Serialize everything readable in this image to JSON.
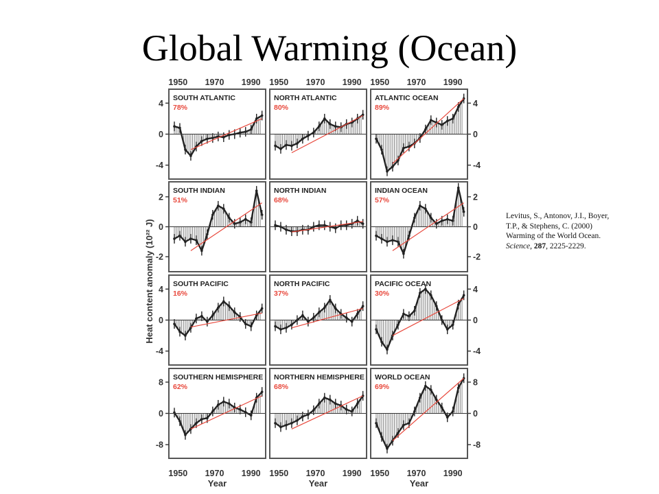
{
  "slide": {
    "title": "Global Warming (Ocean)"
  },
  "citation": {
    "line1": "Levitus, S., Antonov, J.I., Boyer,",
    "line2": "T.P., & Stephens, C. (2000)",
    "line3": "Warming of the World Ocean.",
    "line4_journal": "Science",
    "line4_sep1": ", ",
    "line4_volume": "287",
    "line4_pages": ", 2225-2229."
  },
  "figure": {
    "ylabel": "Heat content anomaly (10²² J)",
    "xlabel": "Year",
    "x_ticks": [
      "1950",
      "1970",
      "1990"
    ],
    "colors": {
      "frame": "#555555",
      "bars": "#777777",
      "series": "#222222",
      "trend": "#e8483c",
      "percent": "#e8483c"
    }
  },
  "chart_data": [
    {
      "type": "bar",
      "title": "SOUTH ATLANTIC",
      "percent": "78%",
      "xlim": [
        1945,
        1998
      ],
      "ylim": [
        -5.8,
        5.8
      ],
      "y_ticks": [
        -4,
        0,
        4
      ],
      "y_tick_labels": [
        "-4",
        "0",
        "4"
      ],
      "y_axis_side": "left",
      "trend": [
        -2.0,
        2.0
      ],
      "x": [
        1948,
        1951,
        1954,
        1957,
        1960,
        1963,
        1966,
        1969,
        1972,
        1975,
        1978,
        1981,
        1984,
        1987,
        1990,
        1993,
        1996
      ],
      "values": [
        1.0,
        0.8,
        -2.0,
        -2.8,
        -1.6,
        -0.9,
        -0.6,
        -0.5,
        -0.3,
        -0.4,
        -0.1,
        0.0,
        0.2,
        0.3,
        0.6,
        2.0,
        2.4
      ]
    },
    {
      "type": "bar",
      "title": "NORTH ATLANTIC",
      "percent": "80%",
      "xlim": [
        1945,
        1998
      ],
      "ylim": [
        -5.8,
        5.8
      ],
      "y_ticks": [
        -4,
        0,
        4
      ],
      "y_tick_labels": [
        "-4",
        "0",
        "4"
      ],
      "y_axis_side": "none",
      "trend": [
        -2.4,
        2.4
      ],
      "x": [
        1948,
        1951,
        1954,
        1957,
        1960,
        1963,
        1966,
        1969,
        1972,
        1975,
        1978,
        1981,
        1984,
        1987,
        1990,
        1993,
        1996
      ],
      "values": [
        -1.5,
        -1.9,
        -1.4,
        -1.5,
        -1.2,
        -0.6,
        -0.2,
        0.2,
        1.0,
        2.0,
        1.3,
        1.0,
        0.9,
        1.3,
        1.5,
        2.0,
        2.5
      ]
    },
    {
      "type": "bar",
      "title": "ATLANTIC OCEAN",
      "percent": "89%",
      "xlim": [
        1945,
        1998
      ],
      "ylim": [
        -5.8,
        5.8
      ],
      "y_ticks": [
        -4,
        0,
        4
      ],
      "y_tick_labels": [
        "-4",
        "0",
        "4"
      ],
      "y_axis_side": "right",
      "trend": [
        -3.8,
        4.6
      ],
      "x": [
        1948,
        1951,
        1954,
        1957,
        1960,
        1963,
        1966,
        1969,
        1972,
        1975,
        1978,
        1981,
        1984,
        1987,
        1990,
        1993,
        1996
      ],
      "values": [
        -0.6,
        -2.0,
        -4.8,
        -4.2,
        -3.4,
        -1.8,
        -1.6,
        -1.2,
        -0.5,
        0.6,
        1.8,
        1.5,
        1.2,
        1.7,
        2.0,
        3.5,
        4.6
      ]
    },
    {
      "type": "bar",
      "title": "SOUTH INDIAN",
      "percent": "51%",
      "xlim": [
        1945,
        1998
      ],
      "ylim": [
        -3.0,
        3.0
      ],
      "y_ticks": [
        -2,
        0,
        2
      ],
      "y_tick_labels": [
        "-2",
        "0",
        "2"
      ],
      "y_axis_side": "left",
      "trend": [
        -1.6,
        1.6
      ],
      "x": [
        1948,
        1951,
        1954,
        1957,
        1960,
        1963,
        1966,
        1969,
        1972,
        1975,
        1978,
        1981,
        1984,
        1987,
        1990,
        1993,
        1996
      ],
      "values": [
        -0.8,
        -0.6,
        -1.0,
        -0.8,
        -0.9,
        -1.6,
        -0.5,
        0.8,
        1.4,
        1.2,
        0.6,
        0.2,
        0.3,
        0.5,
        0.3,
        2.4,
        0.8
      ]
    },
    {
      "type": "bar",
      "title": "NORTH INDIAN",
      "percent": "68%",
      "xlim": [
        1945,
        1998
      ],
      "ylim": [
        -3.0,
        3.0
      ],
      "y_ticks": [
        -2,
        0,
        2
      ],
      "y_tick_labels": [
        "-2",
        "0",
        "2"
      ],
      "y_axis_side": "none",
      "trend": [
        -0.35,
        0.35
      ],
      "x": [
        1948,
        1951,
        1954,
        1957,
        1960,
        1963,
        1966,
        1969,
        1972,
        1975,
        1978,
        1981,
        1984,
        1987,
        1990,
        1993,
        1996
      ],
      "values": [
        0.1,
        0.0,
        -0.2,
        -0.3,
        -0.3,
        -0.2,
        -0.2,
        0.0,
        0.1,
        0.1,
        0.0,
        -0.1,
        0.1,
        0.1,
        0.2,
        0.4,
        0.2
      ]
    },
    {
      "type": "bar",
      "title": "INDIAN OCEAN",
      "percent": "57%",
      "xlim": [
        1945,
        1998
      ],
      "ylim": [
        -3.0,
        3.0
      ],
      "y_ticks": [
        -2,
        0,
        2
      ],
      "y_tick_labels": [
        "-2",
        "0",
        "2"
      ],
      "y_axis_side": "right",
      "trend": [
        -1.6,
        1.6
      ],
      "x": [
        1948,
        1951,
        1954,
        1957,
        1960,
        1963,
        1966,
        1969,
        1972,
        1975,
        1978,
        1981,
        1984,
        1987,
        1990,
        1993,
        1996
      ],
      "values": [
        -0.6,
        -0.8,
        -1.0,
        -0.9,
        -1.0,
        -1.8,
        -0.6,
        0.6,
        1.4,
        1.2,
        0.6,
        0.2,
        0.4,
        0.5,
        0.4,
        2.6,
        1.0
      ]
    },
    {
      "type": "bar",
      "title": "SOUTH PACIFIC",
      "percent": "16%",
      "xlim": [
        1945,
        1998
      ],
      "ylim": [
        -5.8,
        5.8
      ],
      "y_ticks": [
        -4,
        0,
        4
      ],
      "y_tick_labels": [
        "-4",
        "0",
        "4"
      ],
      "y_axis_side": "left",
      "trend": [
        -0.9,
        0.9
      ],
      "x": [
        1948,
        1951,
        1954,
        1957,
        1960,
        1963,
        1966,
        1969,
        1972,
        1975,
        1978,
        1981,
        1984,
        1987,
        1990,
        1993,
        1996
      ],
      "values": [
        -0.5,
        -1.5,
        -2.0,
        -1.0,
        0.2,
        0.5,
        -0.2,
        0.6,
        1.6,
        2.4,
        1.8,
        1.0,
        0.4,
        -0.5,
        -0.8,
        0.6,
        1.5
      ]
    },
    {
      "type": "bar",
      "title": "NORTH PACIFIC",
      "percent": "37%",
      "xlim": [
        1945,
        1998
      ],
      "ylim": [
        -5.8,
        5.8
      ],
      "y_ticks": [
        -4,
        0,
        4
      ],
      "y_tick_labels": [
        "-4",
        "0",
        "4"
      ],
      "y_axis_side": "none",
      "trend": [
        -1.0,
        1.5
      ],
      "x": [
        1948,
        1951,
        1954,
        1957,
        1960,
        1963,
        1966,
        1969,
        1972,
        1975,
        1978,
        1981,
        1984,
        1987,
        1990,
        1993,
        1996
      ],
      "values": [
        -0.8,
        -1.2,
        -1.0,
        -0.6,
        0.0,
        0.6,
        -0.2,
        0.3,
        1.0,
        1.6,
        2.6,
        1.5,
        0.8,
        0.3,
        -0.2,
        0.8,
        1.8
      ]
    },
    {
      "type": "bar",
      "title": "PACIFIC OCEAN",
      "percent": "30%",
      "xlim": [
        1945,
        1998
      ],
      "ylim": [
        -5.8,
        5.8
      ],
      "y_ticks": [
        -4,
        0,
        4
      ],
      "y_tick_labels": [
        "-4",
        "0",
        "4"
      ],
      "y_axis_side": "right",
      "trend": [
        -2.0,
        2.8
      ],
      "x": [
        1948,
        1951,
        1954,
        1957,
        1960,
        1963,
        1966,
        1969,
        1972,
        1975,
        1978,
        1981,
        1984,
        1987,
        1990,
        1993,
        1996
      ],
      "values": [
        -1.2,
        -2.8,
        -3.8,
        -2.0,
        -0.6,
        0.8,
        0.5,
        1.2,
        3.5,
        4.0,
        3.2,
        1.8,
        0.0,
        -1.2,
        -0.6,
        2.0,
        3.2
      ]
    },
    {
      "type": "bar",
      "title": "SOUTHERN HEMISPHERE",
      "percent": "62%",
      "xlim": [
        1945,
        1998
      ],
      "ylim": [
        -11.5,
        11.5
      ],
      "y_ticks": [
        -8,
        0,
        8
      ],
      "y_tick_labels": [
        "-8",
        "0",
        "8"
      ],
      "y_axis_side": "left",
      "trend": [
        -4.0,
        4.5
      ],
      "x": [
        1948,
        1951,
        1954,
        1957,
        1960,
        1963,
        1966,
        1969,
        1972,
        1975,
        1978,
        1981,
        1984,
        1987,
        1990,
        1993,
        1996
      ],
      "values": [
        0.2,
        -2.0,
        -5.5,
        -4.0,
        -2.5,
        -1.5,
        -1.2,
        0.5,
        2.2,
        3.0,
        2.5,
        1.5,
        1.0,
        0.3,
        -0.5,
        4.0,
        5.5
      ]
    },
    {
      "type": "bar",
      "title": "NORTHERN HEMISPHERE",
      "percent": "68%",
      "xlim": [
        1945,
        1998
      ],
      "ylim": [
        -11.5,
        11.5
      ],
      "y_ticks": [
        -8,
        0,
        8
      ],
      "y_tick_labels": [
        "-8",
        "0",
        "8"
      ],
      "y_axis_side": "none",
      "trend": [
        -4.0,
        4.5
      ],
      "x": [
        1948,
        1951,
        1954,
        1957,
        1960,
        1963,
        1966,
        1969,
        1972,
        1975,
        1978,
        1981,
        1984,
        1987,
        1990,
        1993,
        1996
      ],
      "values": [
        -2.5,
        -3.5,
        -3.0,
        -2.5,
        -1.8,
        -0.8,
        -0.3,
        0.8,
        2.5,
        4.0,
        3.5,
        2.5,
        2.0,
        1.0,
        0.5,
        2.5,
        4.5
      ]
    },
    {
      "type": "bar",
      "title": "WORLD OCEAN",
      "percent": "69%",
      "xlim": [
        1945,
        1998
      ],
      "ylim": [
        -11.5,
        11.5
      ],
      "y_ticks": [
        -8,
        0,
        8
      ],
      "y_tick_labels": [
        "-8",
        "0",
        "8"
      ],
      "y_axis_side": "right",
      "trend": [
        -7.0,
        9.0
      ],
      "x": [
        1948,
        1951,
        1954,
        1957,
        1960,
        1963,
        1966,
        1969,
        1972,
        1975,
        1978,
        1981,
        1984,
        1987,
        1990,
        1993,
        1996
      ],
      "values": [
        -2.5,
        -6.0,
        -9.0,
        -7.0,
        -5.0,
        -3.0,
        -2.5,
        0.5,
        4.0,
        7.0,
        6.0,
        3.5,
        1.5,
        -1.0,
        0.5,
        6.5,
        9.0
      ]
    }
  ]
}
